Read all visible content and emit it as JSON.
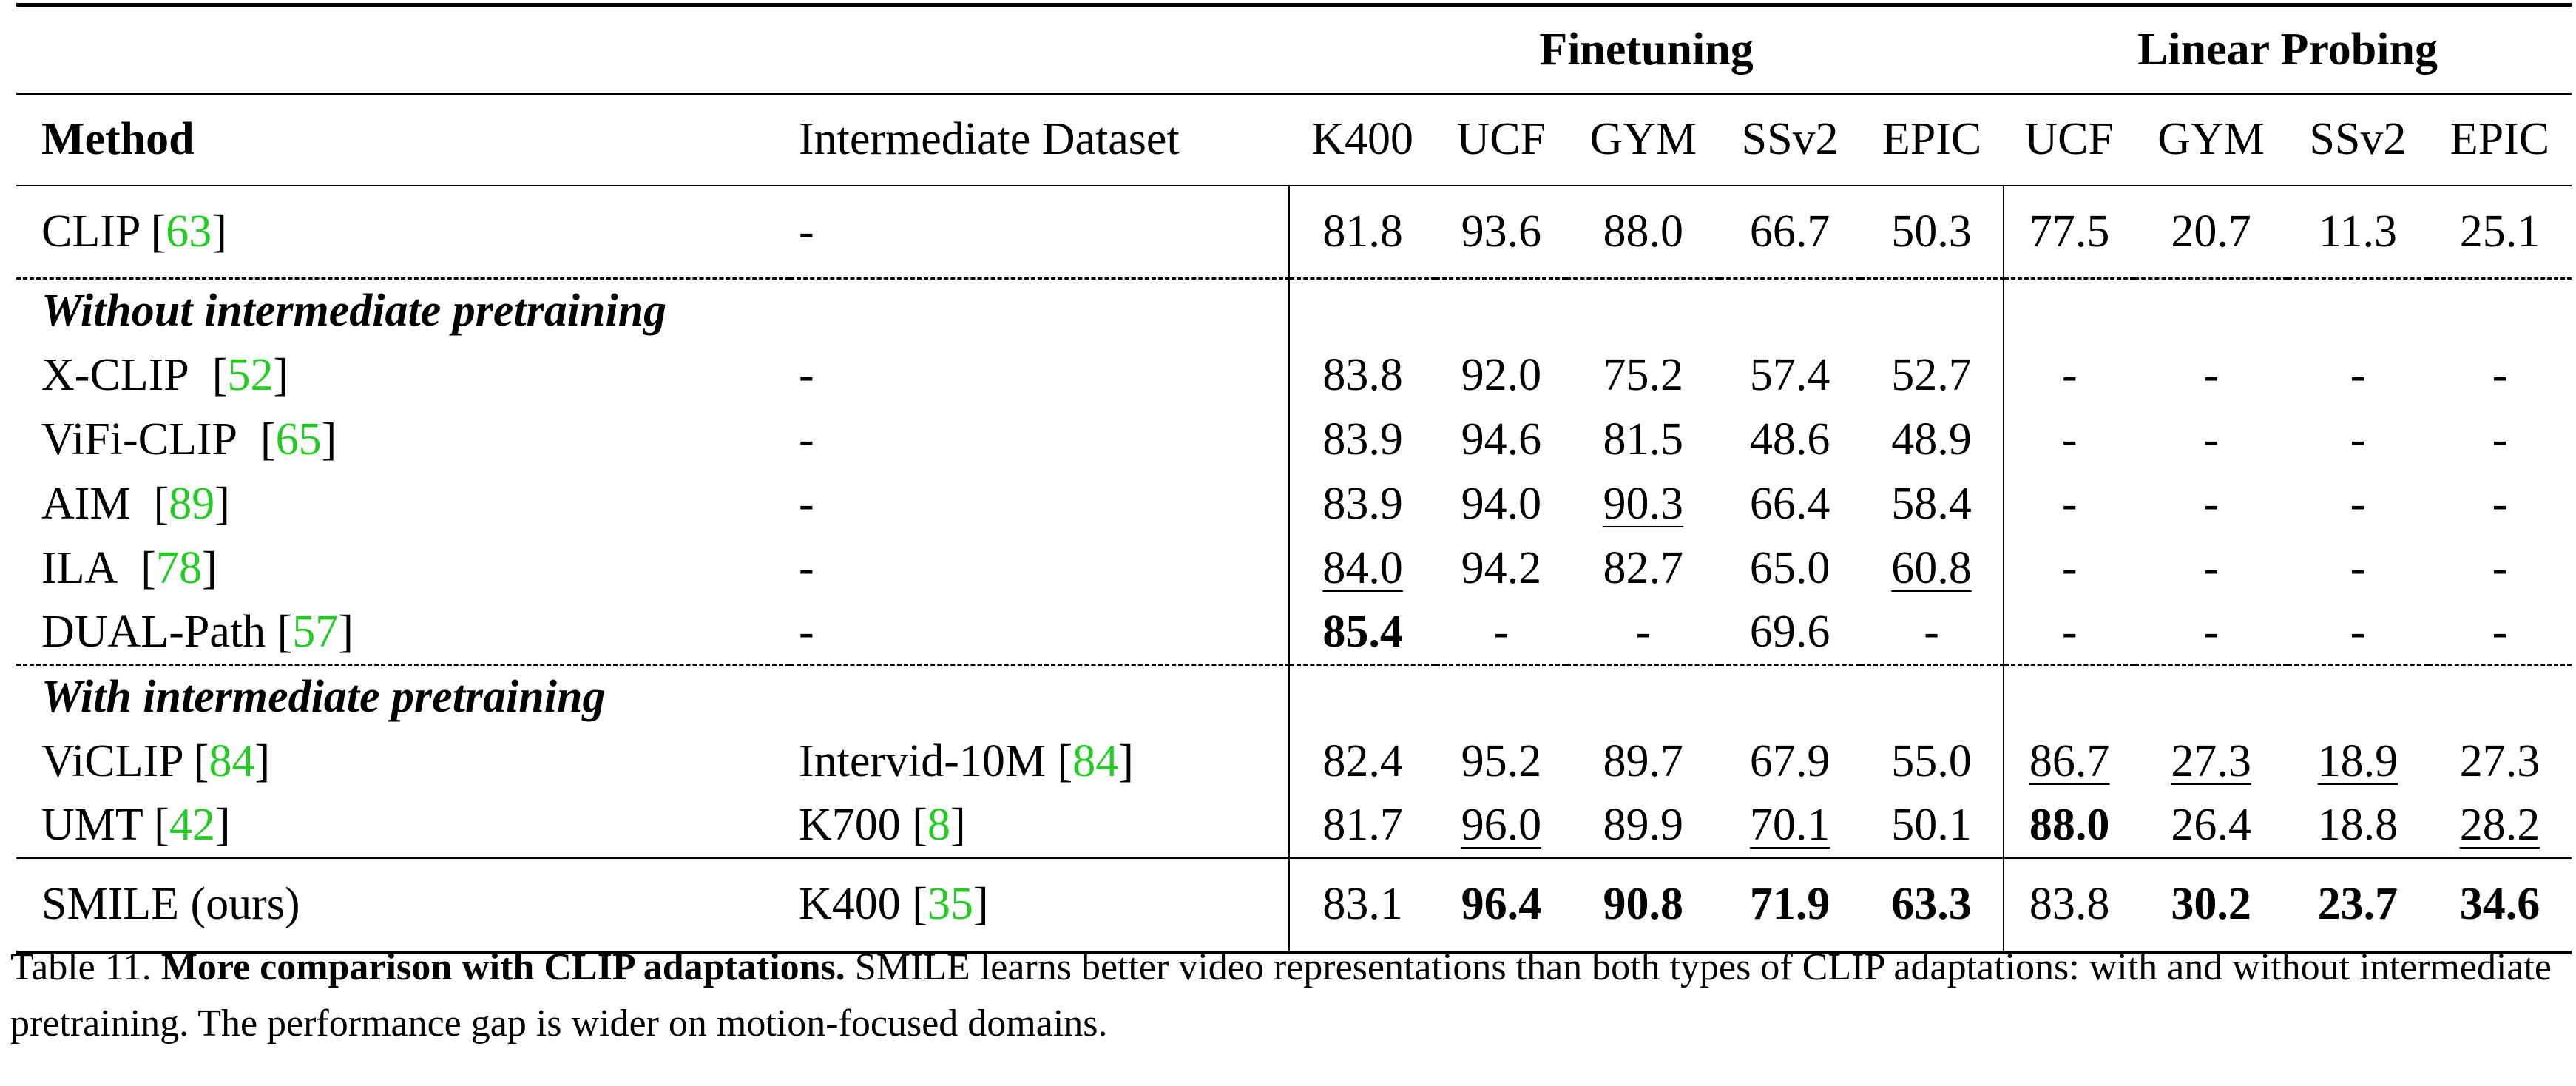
{
  "table": {
    "groups": {
      "finetuning": "Finetuning",
      "linear_probing": "Linear Probing"
    },
    "headers": {
      "method": "Method",
      "dataset": "Intermediate Dataset",
      "ft": [
        "K400",
        "UCF",
        "GYM",
        "SSv2",
        "EPIC"
      ],
      "lp": [
        "UCF",
        "GYM",
        "SSv2",
        "EPIC"
      ]
    },
    "baseline": {
      "name": "CLIP",
      "ref": "63",
      "dataset": "-",
      "ft": [
        "81.8",
        "93.6",
        "88.0",
        "66.7",
        "50.3"
      ],
      "lp": [
        "77.5",
        "20.7",
        "11.3",
        "25.1"
      ]
    },
    "sections": [
      {
        "title": "Without intermediate pretraining",
        "rows": [
          {
            "name": "X-CLIP",
            "ref": "52",
            "dataset": "-",
            "ft": [
              "83.8",
              "92.0",
              "75.2",
              "57.4",
              "52.7"
            ],
            "lp": [
              "-",
              "-",
              "-",
              "-"
            ]
          },
          {
            "name": "ViFi-CLIP",
            "ref": "65",
            "dataset": "-",
            "ft": [
              "83.9",
              "94.6",
              "81.5",
              "48.6",
              "48.9"
            ],
            "lp": [
              "-",
              "-",
              "-",
              "-"
            ]
          },
          {
            "name": "AIM",
            "ref": "89",
            "dataset": "-",
            "ft": [
              "83.9",
              "94.0",
              "90.3",
              "66.4",
              "58.4"
            ],
            "lp": [
              "-",
              "-",
              "-",
              "-"
            ]
          },
          {
            "name": "ILA",
            "ref": "78",
            "dataset": "-",
            "ft": [
              "84.0",
              "94.2",
              "82.7",
              "65.0",
              "60.8"
            ],
            "lp": [
              "-",
              "-",
              "-",
              "-"
            ]
          },
          {
            "name": "DUAL-Path",
            "ref": "57",
            "dataset": "-",
            "ft": [
              "85.4",
              "-",
              "-",
              "69.6",
              "-"
            ],
            "lp": [
              "-",
              "-",
              "-",
              "-"
            ]
          }
        ]
      },
      {
        "title": "With intermediate pretraining",
        "rows": [
          {
            "name": "ViCLIP",
            "ref": "84",
            "dataset": "Intervid-10M",
            "dataset_ref": "84",
            "ft": [
              "82.4",
              "95.2",
              "89.7",
              "67.9",
              "55.0"
            ],
            "lp": [
              "86.7",
              "27.3",
              "18.9",
              "27.3"
            ]
          },
          {
            "name": "UMT",
            "ref": "42",
            "dataset": "K700",
            "dataset_ref": "8",
            "ft": [
              "81.7",
              "96.0",
              "89.9",
              "70.1",
              "50.1"
            ],
            "lp": [
              "88.0",
              "26.4",
              "18.8",
              "28.2"
            ]
          }
        ]
      }
    ],
    "ours": {
      "name": "SMILE (ours)",
      "dataset": "K400",
      "dataset_ref": "35",
      "ft": [
        "83.1",
        "96.4",
        "90.8",
        "71.9",
        "63.3"
      ],
      "lp": [
        "83.8",
        "30.2",
        "23.7",
        "34.6"
      ]
    }
  },
  "caption": {
    "label": "Table 11.",
    "title": "More comparison with CLIP adaptations.",
    "text": "SMILE learns better video representations than both types of CLIP adaptations: with and without intermediate pretraining. The performance gap is wider on motion-focused domains."
  }
}
